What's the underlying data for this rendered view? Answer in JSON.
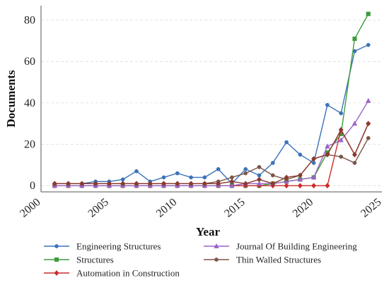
{
  "chart_data": {
    "type": "line",
    "xlabel": "Year",
    "ylabel": "Documents",
    "xlim": [
      2000,
      2025
    ],
    "ylim": [
      -3,
      87
    ],
    "xticks": [
      2000,
      2005,
      2010,
      2015,
      2020,
      2025
    ],
    "yticks": [
      0,
      20,
      40,
      60,
      80
    ],
    "x": [
      2001,
      2002,
      2003,
      2004,
      2005,
      2006,
      2007,
      2008,
      2009,
      2010,
      2011,
      2012,
      2013,
      2014,
      2015,
      2016,
      2017,
      2018,
      2019,
      2020,
      2021,
      2022,
      2023,
      2024
    ],
    "grid": "horizontal dashed",
    "legend_position": "below the axes, two columns",
    "series": [
      {
        "name": "Engineering Structures",
        "color": "#3b73b9",
        "marker": "circle",
        "values": [
          1,
          1,
          1,
          2,
          2,
          3,
          7,
          2,
          4,
          6,
          4,
          4,
          8,
          1,
          8,
          5,
          11,
          21,
          15,
          11,
          39,
          35,
          65,
          68
        ]
      },
      {
        "name": "Structures",
        "color": "#3c9b3c",
        "marker": "square",
        "values": [
          0,
          0,
          0,
          0,
          0,
          0,
          0,
          0,
          0,
          0,
          0,
          0,
          0,
          0,
          0,
          0,
          1,
          2,
          3,
          4,
          16,
          25,
          71,
          83
        ]
      },
      {
        "name": "Automation in Construction",
        "color": "#cc2a2a",
        "marker": "diamond",
        "values": [
          0,
          0,
          0,
          0,
          0,
          0,
          0,
          0,
          0,
          0,
          0,
          0,
          0,
          0,
          0,
          0,
          0,
          0,
          0,
          0,
          0,
          27,
          15,
          30
        ]
      },
      {
        "name": "Journal Of Building Engineering",
        "color": "#9b63c8",
        "marker": "triangle",
        "values": [
          0,
          0,
          0,
          0,
          0,
          0,
          0,
          0,
          0,
          0,
          0,
          0,
          0,
          0,
          1,
          1,
          1,
          2,
          3,
          4,
          19,
          22,
          30,
          41
        ]
      },
      {
        "name": "Thin Walled Structures",
        "color": "#7a5548",
        "marker": "circle",
        "values": [
          1,
          1,
          1,
          1,
          1,
          1,
          1,
          1,
          1,
          1,
          1,
          1,
          2,
          4,
          6,
          9,
          5,
          3,
          5,
          13,
          15,
          14,
          11,
          23
        ]
      }
    ],
    "overlay_series": {
      "name": "",
      "color": "#8b3a2f",
      "marker": "diamond",
      "values": [
        1,
        1,
        1,
        1,
        1,
        1,
        1,
        1,
        1,
        1,
        1,
        1,
        1,
        2,
        1,
        3,
        1,
        4,
        5,
        13,
        15,
        27,
        15,
        30
      ]
    }
  }
}
